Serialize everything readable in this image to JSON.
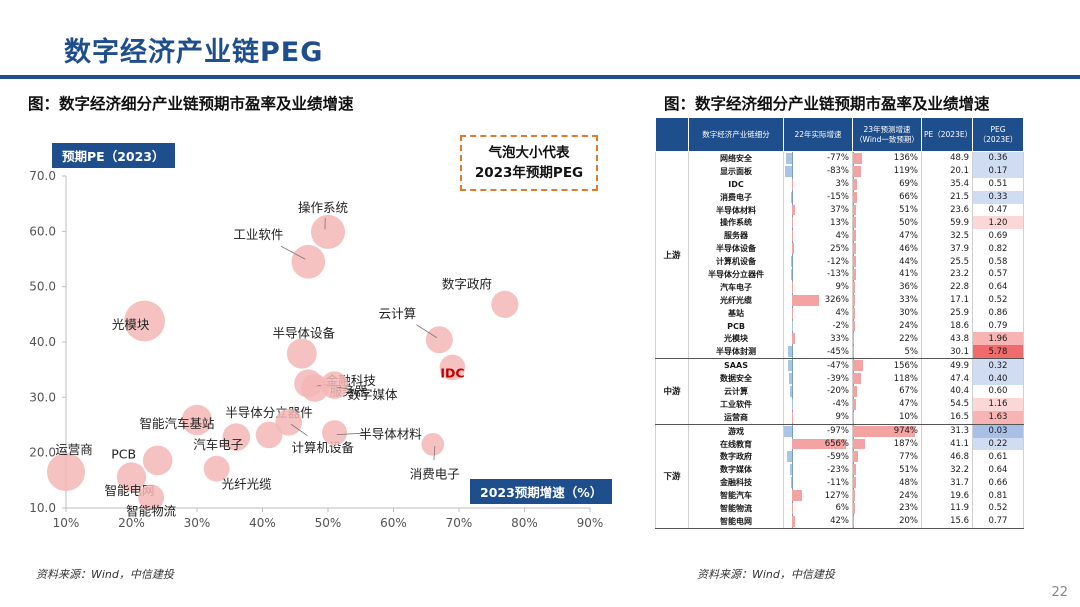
{
  "slide_title": "数字经济产业链PEG",
  "left_caption": "图：数字经济细分产业链预期市盈率及业绩增速",
  "right_caption": "图：数字经济细分产业链预期市盈率及业绩增速",
  "legend_note_line1": "气泡大小代表",
  "legend_note_line2": "2023年预期PEG",
  "y_tag": "预期PE（2023）",
  "x_tag": "2023预期增速（%）",
  "source_left": "资料来源：Wind，中信建投",
  "source_right": "资料来源：Wind，中信建投",
  "page_number": "22",
  "colors": {
    "brand": "#1f4e8c",
    "bubble": "#f4b6b6",
    "highlight": "#f08080"
  },
  "chart_data": {
    "type": "scatter",
    "title": "",
    "xlabel": "2023预期增速（%）",
    "ylabel": "预期PE（2023）",
    "xlim": [
      10,
      90
    ],
    "ylim": [
      10,
      70
    ],
    "x_ticks": [
      "10%",
      "20%",
      "30%",
      "40%",
      "50%",
      "60%",
      "70%",
      "80%",
      "90%"
    ],
    "y_ticks": [
      "10.0",
      "20.0",
      "30.0",
      "40.0",
      "50.0",
      "60.0",
      "70.0"
    ],
    "grid": false,
    "points": [
      {
        "label": "运营商",
        "x": 10,
        "y": 16.5,
        "peg": 1.63
      },
      {
        "label": "智能电网",
        "x": 20,
        "y": 15.6,
        "peg": 0.77
      },
      {
        "label": "智能物流",
        "x": 23,
        "y": 11.9,
        "peg": 0.52
      },
      {
        "label": "智能汽车基站",
        "x": 30,
        "y": 25.9,
        "peg": 0.86
      },
      {
        "label": "PCB",
        "x": 24,
        "y": 18.6,
        "peg": 0.79
      },
      {
        "label": "汽车电子",
        "x": 36,
        "y": 22.8,
        "peg": 0.64
      },
      {
        "label": "光纤光缆",
        "x": 33,
        "y": 17.1,
        "peg": 0.52
      },
      {
        "label": "光模块",
        "x": 22,
        "y": 43.8,
        "peg": 1.96
      },
      {
        "label": "工业软件",
        "x": 47,
        "y": 54.5,
        "peg": 1.16
      },
      {
        "label": "操作系统",
        "x": 50,
        "y": 59.9,
        "peg": 1.2
      },
      {
        "label": "半导体设备",
        "x": 46,
        "y": 37.9,
        "peg": 0.82
      },
      {
        "label": "服务器",
        "x": 47,
        "y": 32.5,
        "peg": 0.69
      },
      {
        "label": "金融科技",
        "x": 48,
        "y": 31.7,
        "peg": 0.66
      },
      {
        "label": "数字媒体",
        "x": 51,
        "y": 32.2,
        "peg": 0.64
      },
      {
        "label": "半导体分立器件",
        "x": 41,
        "y": 23.2,
        "peg": 0.57
      },
      {
        "label": "计算机设备",
        "x": 44,
        "y": 25.5,
        "peg": 0.58
      },
      {
        "label": "半导体材料",
        "x": 51,
        "y": 23.6,
        "peg": 0.47
      },
      {
        "label": "云计算",
        "x": 67,
        "y": 40.4,
        "peg": 0.6
      },
      {
        "label": "数字政府",
        "x": 77,
        "y": 46.8,
        "peg": 0.61
      },
      {
        "label": "IDC",
        "x": 69,
        "y": 35.4,
        "peg": 0.51
      },
      {
        "label": "消费电子",
        "x": 66,
        "y": 21.5,
        "peg": 0.33
      }
    ]
  },
  "table": {
    "headers": [
      "数字经济产业链细分",
      "22年实际增速",
      "23年预测增速（Wind一致预期）",
      "PE（2023E）",
      "PEG（2023E）"
    ],
    "groups": [
      {
        "segment": "上游",
        "rows": [
          {
            "name": "网络安全",
            "g22": "-77%",
            "g23": "136%",
            "pe": "48.9",
            "peg": "0.36"
          },
          {
            "name": "显示面板",
            "g22": "-83%",
            "g23": "119%",
            "pe": "20.1",
            "peg": "0.17"
          },
          {
            "name": "IDC",
            "g22": "3%",
            "g23": "69%",
            "pe": "35.4",
            "peg": "0.51"
          },
          {
            "name": "消费电子",
            "g22": "-15%",
            "g23": "66%",
            "pe": "21.5",
            "peg": "0.33"
          },
          {
            "name": "半导体材料",
            "g22": "37%",
            "g23": "51%",
            "pe": "23.6",
            "peg": "0.47"
          },
          {
            "name": "操作系统",
            "g22": "13%",
            "g23": "50%",
            "pe": "59.9",
            "peg": "1.20"
          },
          {
            "name": "服务器",
            "g22": "4%",
            "g23": "47%",
            "pe": "32.5",
            "peg": "0.69"
          },
          {
            "name": "半导体设备",
            "g22": "25%",
            "g23": "46%",
            "pe": "37.9",
            "peg": "0.82"
          },
          {
            "name": "计算机设备",
            "g22": "-12%",
            "g23": "44%",
            "pe": "25.5",
            "peg": "0.58"
          },
          {
            "name": "半导体分立器件",
            "g22": "-13%",
            "g23": "41%",
            "pe": "23.2",
            "peg": "0.57"
          },
          {
            "name": "汽车电子",
            "g22": "9%",
            "g23": "36%",
            "pe": "22.8",
            "peg": "0.64"
          },
          {
            "name": "光纤光缆",
            "g22": "326%",
            "g23": "33%",
            "pe": "17.1",
            "peg": "0.52"
          },
          {
            "name": "基站",
            "g22": "4%",
            "g23": "30%",
            "pe": "25.9",
            "peg": "0.86"
          },
          {
            "name": "PCB",
            "g22": "-2%",
            "g23": "24%",
            "pe": "18.6",
            "peg": "0.79"
          },
          {
            "name": "光模块",
            "g22": "33%",
            "g23": "22%",
            "pe": "43.8",
            "peg": "1.96"
          },
          {
            "name": "半导体封测",
            "g22": "-45%",
            "g23": "5%",
            "pe": "30.1",
            "peg": "5.78"
          }
        ]
      },
      {
        "segment": "中游",
        "rows": [
          {
            "name": "SAAS",
            "g22": "-47%",
            "g23": "156%",
            "pe": "49.9",
            "peg": "0.32"
          },
          {
            "name": "数据安全",
            "g22": "-39%",
            "g23": "118%",
            "pe": "47.4",
            "peg": "0.40"
          },
          {
            "name": "云计算",
            "g22": "-20%",
            "g23": "67%",
            "pe": "40.4",
            "peg": "0.60"
          },
          {
            "name": "工业软件",
            "g22": "-4%",
            "g23": "47%",
            "pe": "54.5",
            "peg": "1.16"
          },
          {
            "name": "运营商",
            "g22": "9%",
            "g23": "10%",
            "pe": "16.5",
            "peg": "1.63"
          }
        ]
      },
      {
        "segment": "下游",
        "rows": [
          {
            "name": "游戏",
            "g22": "-97%",
            "g23": "974%",
            "pe": "31.3",
            "peg": "0.03"
          },
          {
            "name": "在线教育",
            "g22": "656%",
            "g23": "187%",
            "pe": "41.1",
            "peg": "0.22"
          },
          {
            "name": "数字政府",
            "g22": "-59%",
            "g23": "77%",
            "pe": "46.8",
            "peg": "0.61"
          },
          {
            "name": "数字媒体",
            "g22": "-23%",
            "g23": "51%",
            "pe": "32.2",
            "peg": "0.64"
          },
          {
            "name": "金融科技",
            "g22": "-11%",
            "g23": "48%",
            "pe": "31.7",
            "peg": "0.66"
          },
          {
            "name": "智能汽车",
            "g22": "127%",
            "g23": "24%",
            "pe": "19.6",
            "peg": "0.81"
          },
          {
            "name": "智能物流",
            "g22": "6%",
            "g23": "23%",
            "pe": "11.9",
            "peg": "0.52"
          },
          {
            "name": "智能电网",
            "g22": "42%",
            "g23": "20%",
            "pe": "15.6",
            "peg": "0.77"
          }
        ]
      }
    ]
  }
}
